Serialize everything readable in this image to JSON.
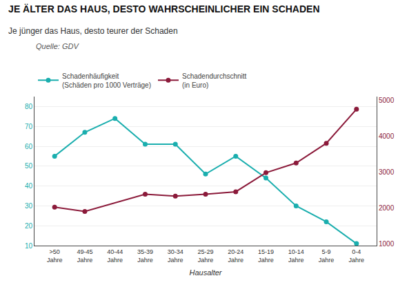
{
  "chart_data": {
    "type": "line",
    "title": "JE ÄLTER DAS HAUS, DESTO WAHRSCHEINLICHER EIN SCHADEN",
    "subtitle": "Je jünger das Haus, desto teurer der Schaden",
    "annotations": [
      "Quelle: GDV"
    ],
    "xlabel": "Hausalter",
    "categories": [
      ">50\nJahre",
      "49-45\nJahre",
      "40-44\nJahre",
      "35-39\nJahre",
      "30-34\nJahre",
      "25-29\nJahre",
      "20-24\nJahre",
      "15-19\nJahre",
      "10-14\nJahre",
      "5-9\nJahre",
      "0-4\nJahre"
    ],
    "series": [
      {
        "name": "Schadenhäufigkeit\n(Schäden pro 1000 Verträge)",
        "color": "#1AAEAE",
        "marker": "circle",
        "values": [
          55,
          67,
          74,
          61,
          61,
          46,
          55,
          44,
          30,
          22,
          11
        ]
      },
      {
        "name": "Schadendurchschnitt\n(in Euro)",
        "color": "#8B1A3A",
        "marker": "circle",
        "axis": "y2",
        "values": [
          2020,
          1900,
          null,
          2380,
          2330,
          2380,
          2450,
          2980,
          3250,
          3800,
          4750
        ]
      }
    ],
    "ylim": [
      10,
      85
    ],
    "yticks": [
      10,
      20,
      30,
      40,
      50,
      60,
      70,
      80
    ],
    "y2lim": [
      950,
      5100
    ],
    "y2ticks": [
      1000,
      2000,
      3000,
      4000,
      5000
    ],
    "grid": true,
    "legend": "top"
  }
}
